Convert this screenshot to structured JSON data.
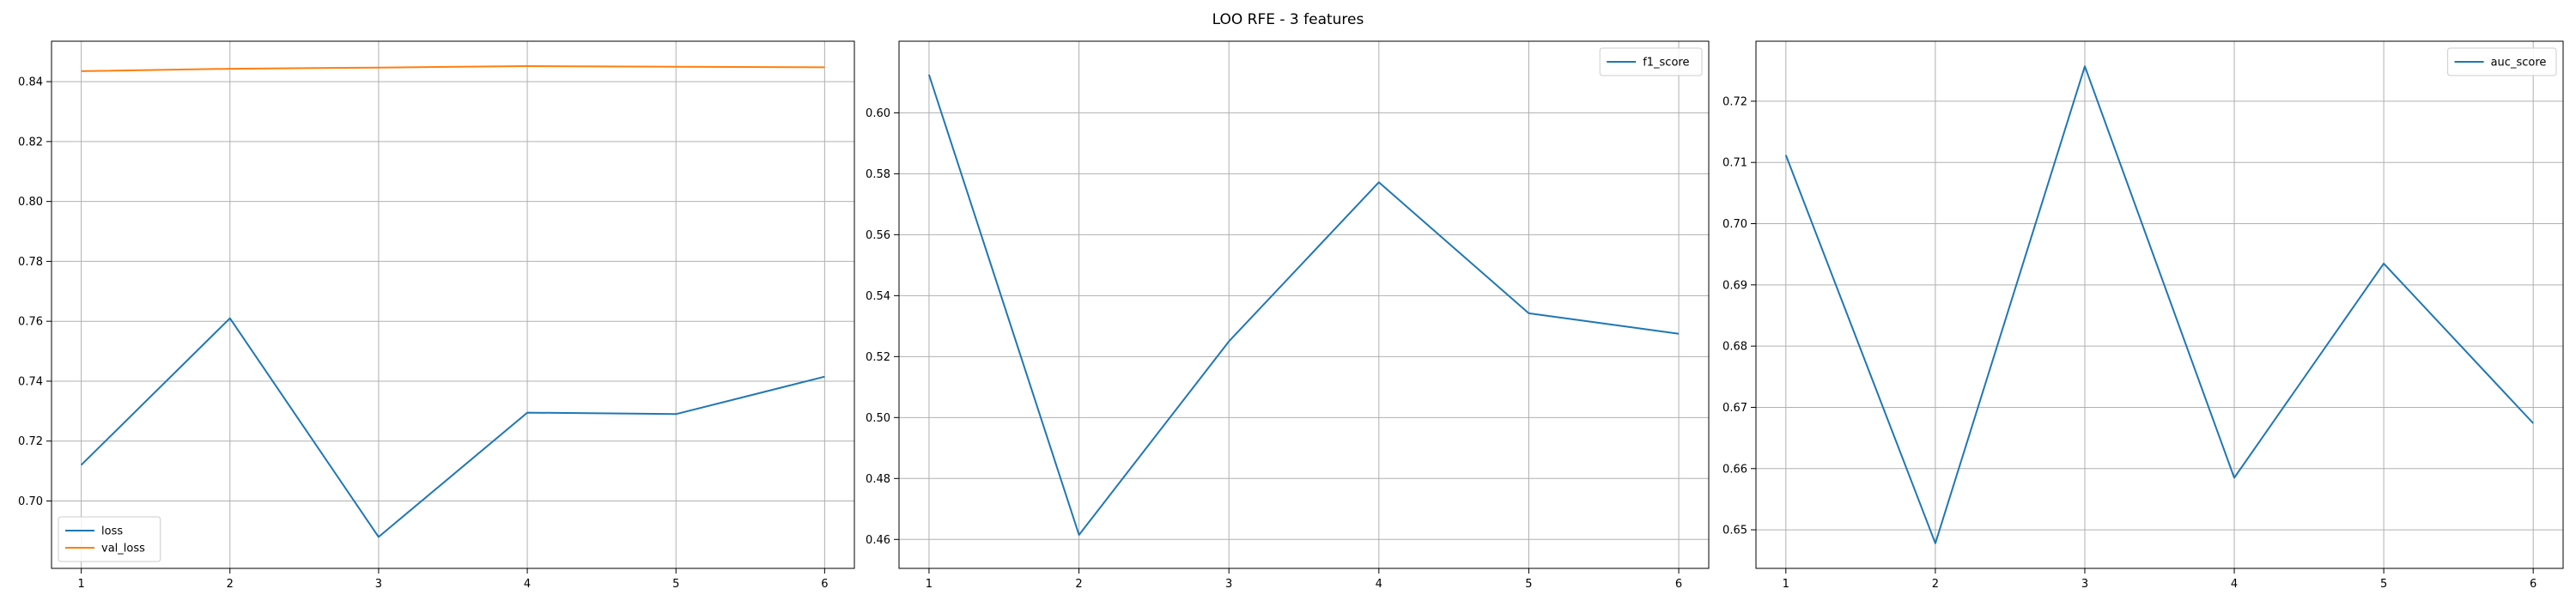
{
  "figure": {
    "title": "LOO RFE - 3 features"
  },
  "chart_data": [
    {
      "type": "line",
      "x": [
        1,
        2,
        3,
        4,
        5,
        6
      ],
      "series": [
        {
          "name": "loss",
          "color": "#1f77b4",
          "values": [
            0.712,
            0.761,
            0.688,
            0.7295,
            0.729,
            0.7415
          ]
        },
        {
          "name": "val_loss",
          "color": "#ff7f0e",
          "values": [
            0.8435,
            0.8443,
            0.8447,
            0.8452,
            0.845,
            0.8448
          ]
        }
      ],
      "xlim": [
        0.8,
        6.2
      ],
      "ylim": [
        0.6775,
        0.8535
      ],
      "xticks": [
        1,
        2,
        3,
        4,
        5,
        6
      ],
      "yticks": [
        0.7,
        0.72,
        0.74,
        0.76,
        0.78,
        0.8,
        0.82,
        0.84
      ],
      "ytick_labels": [
        "0.70",
        "0.72",
        "0.74",
        "0.76",
        "0.78",
        "0.80",
        "0.82",
        "0.84"
      ],
      "grid": true,
      "legend": "lower-left"
    },
    {
      "type": "line",
      "x": [
        1,
        2,
        3,
        4,
        5,
        6
      ],
      "series": [
        {
          "name": "f1_score",
          "color": "#1f77b4",
          "values": [
            0.6125,
            0.4615,
            0.525,
            0.5772,
            0.5342,
            0.5275
          ]
        }
      ],
      "xlim": [
        0.8,
        6.2
      ],
      "ylim": [
        0.4505,
        0.6235
      ],
      "xticks": [
        1,
        2,
        3,
        4,
        5,
        6
      ],
      "yticks": [
        0.46,
        0.48,
        0.5,
        0.52,
        0.54,
        0.56,
        0.58,
        0.6
      ],
      "ytick_labels": [
        "0.46",
        "0.48",
        "0.50",
        "0.52",
        "0.54",
        "0.56",
        "0.58",
        "0.60"
      ],
      "grid": true,
      "legend": "upper-right"
    },
    {
      "type": "line",
      "x": [
        1,
        2,
        3,
        4,
        5,
        6
      ],
      "series": [
        {
          "name": "auc_score",
          "color": "#1f77b4",
          "values": [
            0.7112,
            0.6478,
            0.7257,
            0.6585,
            0.6935,
            0.6674
          ]
        }
      ],
      "xlim": [
        0.8,
        6.2
      ],
      "ylim": [
        0.6437,
        0.7298
      ],
      "xticks": [
        1,
        2,
        3,
        4,
        5,
        6
      ],
      "yticks": [
        0.65,
        0.66,
        0.67,
        0.68,
        0.69,
        0.7,
        0.71,
        0.72
      ],
      "ytick_labels": [
        "0.65",
        "0.66",
        "0.67",
        "0.68",
        "0.69",
        "0.70",
        "0.71",
        "0.72"
      ],
      "grid": true,
      "legend": "upper-right"
    }
  ]
}
